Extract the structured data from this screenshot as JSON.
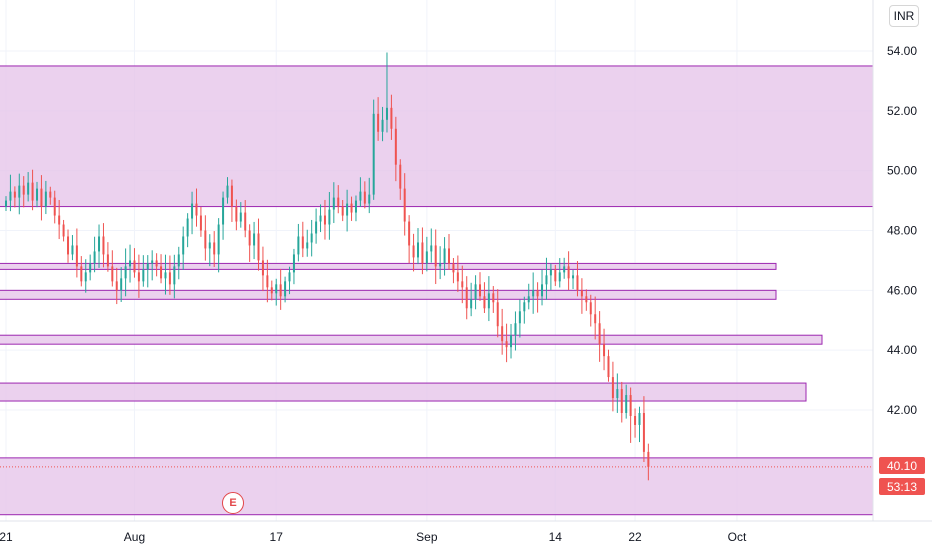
{
  "currency": "INR",
  "earnings_marker": "E",
  "last_price_label": "40.10",
  "countdown_label": "53:13",
  "colors": {
    "up": "#26a69a",
    "down": "#ef5350",
    "zone_fill": "#e6c6ea",
    "zone_stroke": "#9c27b0",
    "price_line": "#ef5350"
  },
  "chart_data": {
    "type": "candlestick",
    "y_axis": {
      "ticks": [
        "54.00",
        "52.00",
        "50.00",
        "48.00",
        "46.00",
        "44.00",
        "42.00"
      ],
      "range": [
        38.5,
        55.3
      ]
    },
    "x_axis": {
      "ticks": [
        "21",
        "Aug",
        "17",
        "Sep",
        "14",
        "22",
        "Oct"
      ]
    },
    "last_price": 40.1,
    "zones": [
      {
        "top": 53.5,
        "bottom": 48.8,
        "extends": "right-edge"
      },
      {
        "top": 46.9,
        "bottom": 46.7,
        "extends": "to-sep-30"
      },
      {
        "top": 46.0,
        "bottom": 45.7,
        "extends": "to-sep-30"
      },
      {
        "top": 44.5,
        "bottom": 44.2,
        "extends": "to-oct-03"
      },
      {
        "top": 42.9,
        "bottom": 42.3,
        "extends": "to-oct-02"
      },
      {
        "top": 40.4,
        "bottom": 38.5,
        "extends": "right-edge"
      }
    ],
    "closes": [
      49.0,
      49.3,
      49.1,
      49.5,
      49.2,
      49.6,
      49.0,
      49.4,
      48.8,
      49.3,
      49.1,
      48.5,
      48.2,
      47.8,
      47.2,
      47.5,
      46.8,
      46.3,
      46.6,
      46.9,
      47.3,
      47.8,
      47.2,
      46.8,
      46.3,
      46.0,
      46.4,
      46.8,
      47.0,
      46.6,
      46.3,
      46.7,
      46.9,
      47.0,
      46.8,
      46.4,
      46.6,
      46.2,
      46.8,
      47.2,
      47.8,
      48.4,
      48.9,
      48.5,
      48.0,
      47.4,
      47.6,
      47.2,
      48.2,
      49.1,
      49.5,
      48.8,
      48.3,
      48.6,
      48.0,
      47.5,
      47.9,
      47.0,
      46.5,
      46.1,
      45.9,
      46.2,
      45.8,
      46.3,
      46.6,
      47.2,
      47.8,
      47.4,
      47.6,
      47.9,
      48.3,
      48.5,
      48.2,
      48.7,
      49.1,
      48.8,
      48.5,
      48.9,
      48.6,
      49.0,
      49.3,
      48.9,
      49.2,
      51.9,
      51.3,
      51.7,
      52.1,
      51.4,
      50.2,
      49.4,
      48.3,
      47.5,
      47.1,
      47.6,
      46.9,
      47.3,
      47.5,
      46.8,
      46.9,
      47.4,
      46.9,
      46.6,
      46.3,
      46.1,
      45.4,
      45.7,
      46.2,
      45.8,
      45.4,
      45.9,
      45.6,
      44.8,
      44.3,
      44.1,
      44.5,
      44.9,
      45.3,
      45.6,
      45.8,
      46.0,
      45.8,
      46.2,
      46.5,
      46.7,
      46.3,
      46.6,
      46.8,
      46.4,
      46.5,
      46.0,
      45.8,
      45.6,
      45.2,
      44.9,
      44.2,
      43.8,
      43.1,
      42.4,
      42.7,
      41.9,
      42.5,
      41.8,
      41.5,
      41.9,
      40.6,
      40.1
    ],
    "x_tick_index": {
      "21": 0,
      "Aug": 29,
      "17": 61,
      "Sep": 95,
      "14": 124,
      "22": 142,
      "Oct": 165
    },
    "total_slots": 175
  }
}
